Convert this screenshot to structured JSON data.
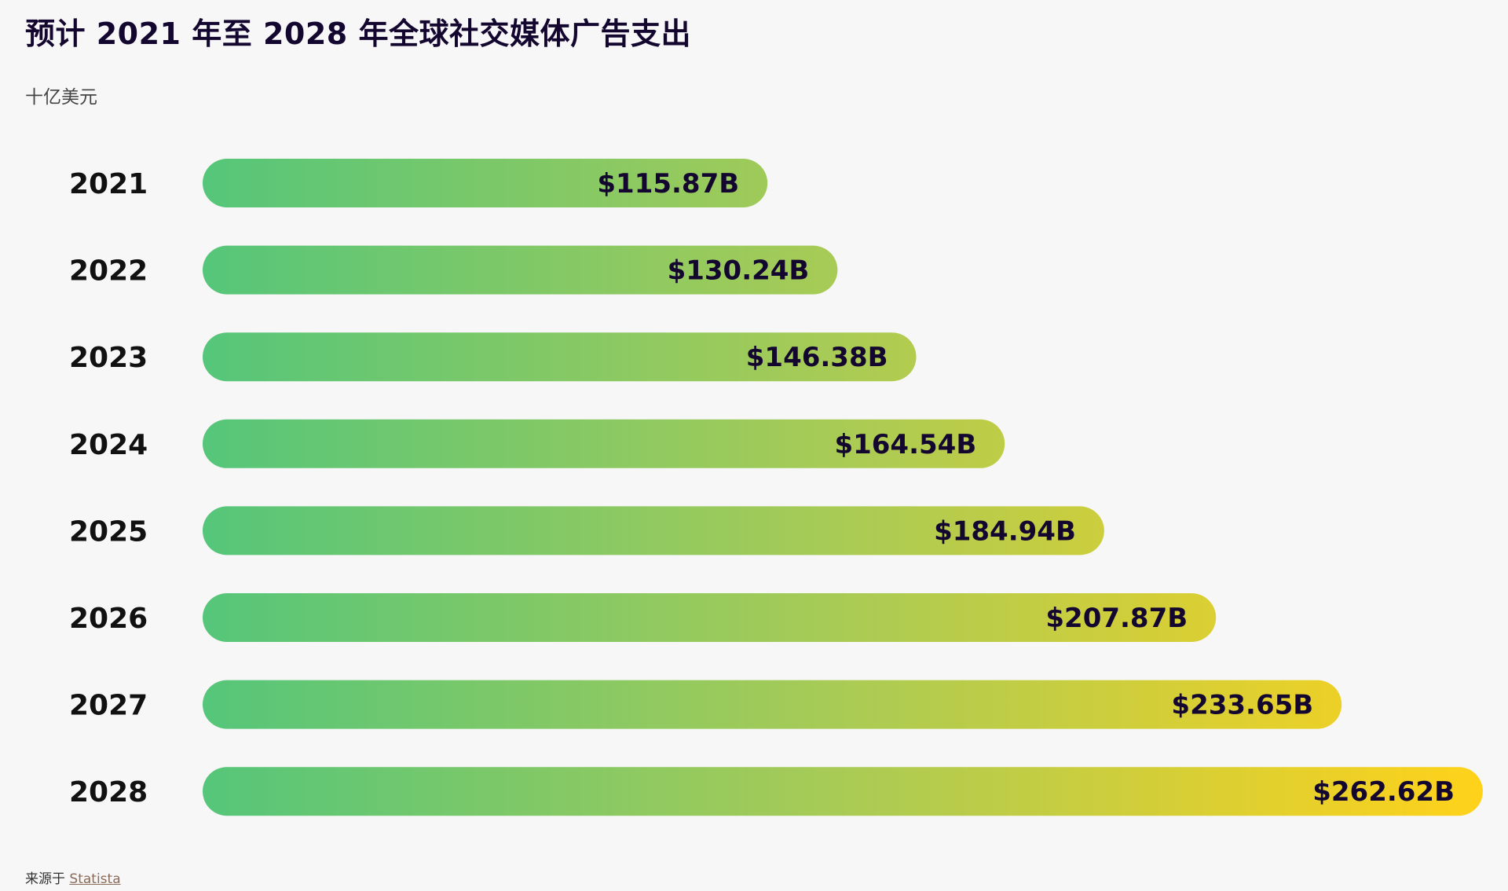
{
  "title": "预计 2021 年至 2028 年全球社交媒体广告支出",
  "unit": "十亿美元",
  "source": {
    "prefix": "来源于",
    "link": "Statista"
  },
  "colors": {
    "bar_start": "#55c67a",
    "bar_mid": "#a9cb55",
    "bar_end": "#ffd21a",
    "label_text": "#14072f"
  },
  "chart_data": {
    "type": "bar",
    "orientation": "horizontal",
    "categories": [
      "2021",
      "2022",
      "2023",
      "2024",
      "2025",
      "2026",
      "2027",
      "2028"
    ],
    "values": [
      115.87,
      130.24,
      146.38,
      164.54,
      184.94,
      207.87,
      233.65,
      262.62
    ],
    "data_labels": [
      "$115.87B",
      "$130.24B",
      "$146.38B",
      "$164.54B",
      "$184.94B",
      "$207.87B",
      "$233.65B",
      "$262.62B"
    ],
    "title": "预计 2021 年至 2028 年全球社交媒体广告支出",
    "xlabel": "",
    "ylabel": "十亿美元",
    "grid": false
  }
}
